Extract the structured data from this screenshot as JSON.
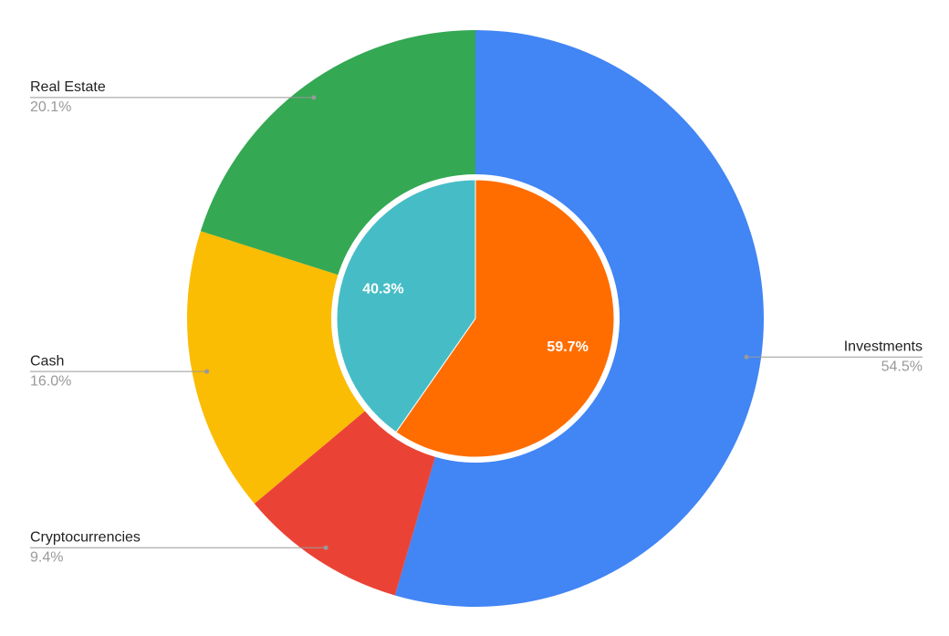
{
  "chart_data": [
    {
      "type": "donut",
      "categories": [
        "Investments",
        "Cryptocurrencies",
        "Cash",
        "Real Estate"
      ],
      "values": [
        54.5,
        9.4,
        16.0,
        20.1
      ],
      "value_labels": [
        "54.5%",
        "9.4%",
        "16.0%",
        "20.1%"
      ],
      "colors": [
        "#4285f4",
        "#ea4335",
        "#fbbc04",
        "#34a853"
      ]
    },
    {
      "type": "pie",
      "values": [
        59.7,
        40.3
      ],
      "value_labels": [
        "59.7%",
        "40.3%"
      ],
      "colors": [
        "#ff6d01",
        "#46bdc6"
      ]
    }
  ]
}
